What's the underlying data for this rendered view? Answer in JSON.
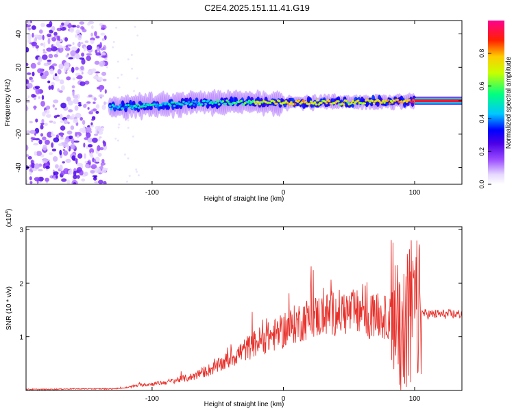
{
  "title": "C2E4.2025.151.11.41.G19",
  "colors": {
    "snr_line": "#e8302a",
    "axis": "#000000",
    "gradient": [
      "#ffffff",
      "#e6d8ff",
      "#9b4dff",
      "#6b00e6",
      "#0000ff",
      "#00c8ff",
      "#00ff80",
      "#c8ff00",
      "#ffcc00",
      "#ff0000",
      "#ff0090"
    ]
  },
  "chart_data": [
    {
      "type": "heatmap",
      "title": "C2E4.2025.151.11.41.G19",
      "xlabel": "Height of straight line (km)",
      "ylabel": "Frequency (Hz)",
      "xlim": [
        -196,
        136
      ],
      "ylim": [
        -50,
        48
      ],
      "xticks": [
        -100,
        0,
        100
      ],
      "xtick_labels": [
        "-100",
        "0",
        "100"
      ],
      "yticks": [
        40,
        20,
        0,
        -20,
        -40
      ],
      "ytick_labels": [
        "40",
        "20",
        "0",
        "-20",
        "-40"
      ],
      "colorbar": {
        "label": "Normalized spectral amplitude",
        "range": [
          0,
          1
        ],
        "ticks": [
          0,
          0.2,
          0.4,
          0.6,
          0.8
        ],
        "tick_labels": [
          "0.0",
          "0.2",
          "0.4",
          "0.6",
          "0.8"
        ]
      },
      "ridge": {
        "x": [
          -132,
          -110,
          -90,
          -70,
          -50,
          -30,
          -10,
          10,
          30,
          50,
          70,
          90,
          100,
          136
        ],
        "center_hz": [
          -4,
          -3,
          -2.5,
          -1.5,
          -1,
          -1,
          -1,
          -1,
          -1,
          -1,
          -0.5,
          -0.5,
          0,
          0
        ],
        "peak_amplitude": [
          0.45,
          0.5,
          0.5,
          0.5,
          0.55,
          0.6,
          0.75,
          0.8,
          0.75,
          0.7,
          0.75,
          0.8,
          0.95,
          0.95
        ]
      }
    },
    {
      "type": "line",
      "xlabel": "Height of straight line (km)",
      "ylabel": "SNR (10 * v/v)",
      "y_multiplier": "(x10",
      "y_multiplier_exp": "4",
      "y_multiplier_close": ")",
      "xlim": [
        -196,
        136
      ],
      "ylim": [
        0,
        3.05
      ],
      "xticks": [
        -100,
        0,
        100
      ],
      "xtick_labels": [
        "-100",
        "0",
        "100"
      ],
      "yticks": [
        1,
        2,
        3
      ],
      "ytick_labels": [
        "1",
        "2",
        "3"
      ],
      "series": [
        {
          "x": [
            -196,
            -180,
            -160,
            -140,
            -130,
            -120,
            -110,
            -100,
            -90,
            -80,
            -70,
            -60,
            -50,
            -40,
            -30,
            -20,
            -10,
            0,
            10,
            20,
            30,
            40,
            50,
            60,
            65,
            70,
            80,
            90,
            95,
            100,
            105,
            110,
            120,
            136
          ],
          "y": [
            0.02,
            0.02,
            0.03,
            0.03,
            0.03,
            0.05,
            0.1,
            0.12,
            0.15,
            0.2,
            0.25,
            0.35,
            0.45,
            0.6,
            0.75,
            0.9,
            1.0,
            1.1,
            1.25,
            1.35,
            1.4,
            1.45,
            1.45,
            1.45,
            1.3,
            1.4,
            1.35,
            1.3,
            1.4,
            1.45,
            1.45,
            1.42,
            1.42,
            1.42
          ]
        }
      ]
    }
  ]
}
